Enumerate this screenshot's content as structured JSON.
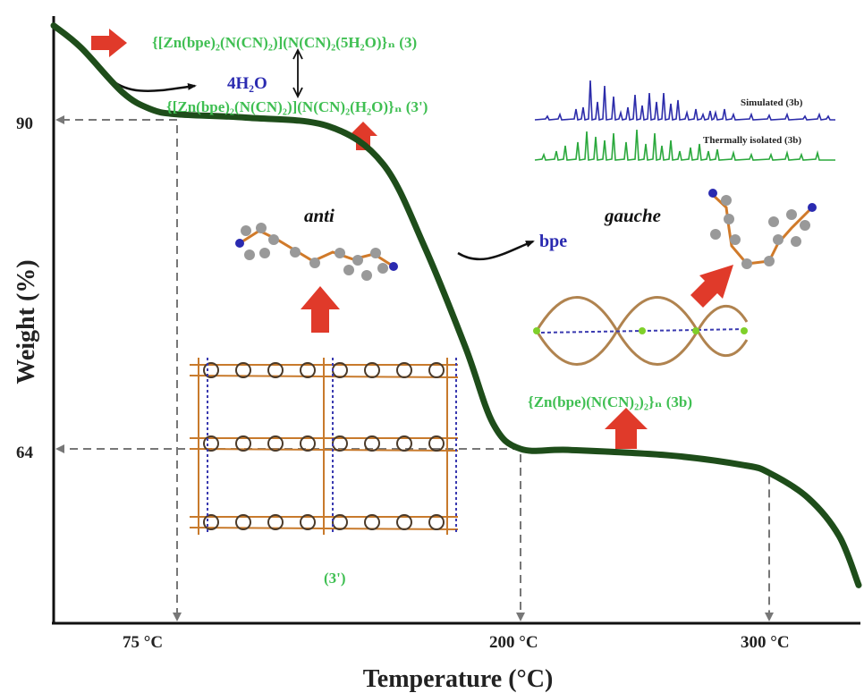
{
  "chart_data": {
    "type": "line",
    "title": "",
    "xlabel": "Temperature (°C)",
    "ylabel": "Weight (%)",
    "y_ticks": [
      "90",
      "64"
    ],
    "x_ticks": [
      "75 °C",
      "200 °C",
      "300 °C"
    ],
    "series": [
      {
        "x": [
          30,
          40,
          55,
          65,
          75,
          100,
          130,
          150,
          165,
          180,
          190,
          200,
          220,
          260,
          290,
          300,
          310,
          318,
          323
        ],
        "y": [
          98.5,
          96.5,
          92.5,
          91,
          90.5,
          90.2,
          89.5,
          86.5,
          80,
          72,
          66,
          64,
          63.9,
          63.4,
          62.5,
          61.8,
          59.5,
          56,
          51.5
        ]
      }
    ],
    "reference_points": [
      {
        "x": 75,
        "y": 90
      },
      {
        "x": 200,
        "y": 64
      },
      {
        "x": 300,
        "y": 62
      }
    ],
    "annotations": {
      "formula_3": "{[Zn(bpe)₂(N(CN)₂)](N(CN)₂(5H₂O)}ₙ (3)",
      "formula_3prime": "{[Zn(bpe)₂(N(CN)₂)](N(CN)₂(H₂O)}ₙ (3')",
      "water_loss": "4H₂O",
      "bpe": "bpe",
      "anti": "anti",
      "gauche": "gauche",
      "formula_3b": "{Zn(bpe)(N(CN)₂)₂}ₙ (3b)",
      "label_3prime": "(3')"
    },
    "pxrd": {
      "simulated_label": "Simulated (3b)",
      "isolated_label": "Thermally isolated (3b)",
      "simulated_color": "#2c2caa",
      "isolated_color": "#2aa83c"
    },
    "curve_color": "#1e4d1a",
    "ref_line_color": "#777777"
  }
}
